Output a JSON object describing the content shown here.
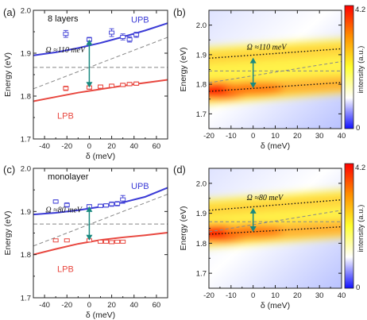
{
  "chart_data": [
    {
      "panel": "(a)",
      "type": "scatter",
      "annotation": "8 layers",
      "xlabel": "δ (meV)",
      "ylabel": "Energy (eV)",
      "xlim": [
        -50,
        70
      ],
      "ylim": [
        1.7,
        2.0
      ],
      "xticks": [
        -40,
        -20,
        0,
        20,
        40,
        60
      ],
      "yticks": [
        1.7,
        1.8,
        1.9,
        2.0
      ],
      "rabi_label": "Ω ≈110 meV",
      "upb": {
        "label": "UPB",
        "color": "#3b3bd6",
        "x": [
          -50,
          -30,
          -10,
          10,
          30,
          50,
          70
        ],
        "y": [
          1.895,
          1.902,
          1.912,
          1.924,
          1.938,
          1.953,
          1.97
        ]
      },
      "lpb": {
        "label": "LPB",
        "color": "#e8473f",
        "x": [
          -50,
          -30,
          -10,
          10,
          30,
          50,
          70
        ],
        "y": [
          1.788,
          1.798,
          1.808,
          1.816,
          1.824,
          1.831,
          1.838
        ]
      },
      "exciton_line": {
        "color": "#888888",
        "y": 1.867
      },
      "cavity_line": {
        "color": "#888888",
        "x": [
          -50,
          70
        ],
        "y": [
          1.817,
          1.937
        ]
      },
      "upb_points": {
        "x": [
          -21,
          0,
          20,
          30,
          36,
          42
        ],
        "y": [
          1.945,
          1.932,
          1.948,
          1.938,
          1.932,
          1.943
        ],
        "yerr": [
          0.008,
          0.005,
          0.009,
          0.007,
          0.006,
          0.006
        ],
        "color": "#4a4ad8"
      },
      "lpb_points": {
        "x": [
          -21,
          0,
          10,
          20,
          30,
          36,
          42
        ],
        "y": [
          1.818,
          1.82,
          1.822,
          1.824,
          1.826,
          1.828,
          1.829
        ],
        "yerr": [
          0.005,
          0.004,
          0.004,
          0.004,
          0.004,
          0.004,
          0.004
        ],
        "color": "#e8473f"
      },
      "arrow": {
        "x": 0,
        "y": [
          1.82,
          1.932
        ],
        "color": "#1a8a80"
      }
    },
    {
      "panel": "(b)",
      "type": "heatmap",
      "xlabel": "δ (meV)",
      "ylabel": "Energy (eV)",
      "xlim": [
        -20,
        40
      ],
      "ylim": [
        1.65,
        2.05
      ],
      "xticks": [
        -20,
        -10,
        0,
        10,
        20,
        30,
        40
      ],
      "yticks": [
        1.7,
        1.8,
        1.9,
        2.0
      ],
      "colorbar": {
        "label": "intensity (a.u.)",
        "min": 0,
        "max": 4.2,
        "colors": [
          "#1010ff",
          "#ffffff",
          "#ffff30",
          "#ff9000",
          "#ff0000"
        ]
      },
      "rabi_label": "Ω ≈110 meV",
      "upb_dotted": {
        "x": [
          -20,
          40
        ],
        "y": [
          1.888,
          1.92
        ]
      },
      "lpb_dotted": {
        "x": [
          -20,
          40
        ],
        "y": [
          1.776,
          1.806
        ]
      },
      "exciton_line": {
        "y": 1.845
      },
      "cavity_line": {
        "x": [
          -20,
          40
        ],
        "y": [
          1.805,
          1.877
        ]
      },
      "arrow": {
        "x": 0,
        "y": [
          1.787,
          1.89
        ],
        "color": "#1a8a80"
      }
    },
    {
      "panel": "(c)",
      "type": "scatter",
      "annotation": "monolayer",
      "xlabel": "δ (meV)",
      "ylabel": "Energy (eV)",
      "xlim": [
        -50,
        70
      ],
      "ylim": [
        1.7,
        2.0
      ],
      "xticks": [
        -40,
        -20,
        0,
        20,
        40,
        60
      ],
      "yticks": [
        1.7,
        1.8,
        1.9,
        2.0
      ],
      "rabi_label": "Ω ≈80 meV",
      "upb": {
        "label": "UPB",
        "color": "#3b3bd6",
        "x": [
          -50,
          -30,
          -10,
          10,
          30,
          50,
          70
        ],
        "y": [
          1.893,
          1.897,
          1.903,
          1.911,
          1.921,
          1.934,
          1.955
        ]
      },
      "lpb": {
        "label": "LPB",
        "color": "#e8473f",
        "x": [
          -50,
          -30,
          -10,
          10,
          30,
          50,
          70
        ],
        "y": [
          1.8,
          1.813,
          1.825,
          1.834,
          1.84,
          1.845,
          1.851
        ]
      },
      "exciton_line": {
        "color": "#888888",
        "y": 1.871
      },
      "cavity_line": {
        "color": "#888888",
        "x": [
          -50,
          70
        ],
        "y": [
          1.82,
          1.94
        ]
      },
      "upb_points": {
        "x": [
          -30,
          -20,
          0,
          10,
          15,
          20,
          25,
          30
        ],
        "y": [
          1.923,
          1.915,
          1.912,
          1.913,
          1.914,
          1.917,
          1.918,
          1.928
        ],
        "yerr": [
          0.004,
          0.005,
          0.004,
          0.004,
          0.004,
          0.005,
          0.005,
          0.009
        ],
        "color": "#4a4ad8"
      },
      "lpb_points": {
        "x": [
          -30,
          -20,
          0,
          10,
          15,
          20,
          25,
          30
        ],
        "y": [
          1.833,
          1.833,
          1.833,
          1.83,
          1.83,
          1.829,
          1.83,
          1.83
        ],
        "yerr": [
          0.003,
          0.003,
          0.003,
          0.003,
          0.003,
          0.003,
          0.003,
          0.003
        ],
        "color": "#e8473f"
      },
      "arrow": {
        "x": 0,
        "y": [
          1.833,
          1.912
        ],
        "color": "#1a8a80"
      }
    },
    {
      "panel": "(d)",
      "type": "heatmap",
      "xlabel": "δ (meV)",
      "ylabel": "Energy (eV)",
      "xlim": [
        -20,
        40
      ],
      "ylim": [
        1.65,
        2.05
      ],
      "xticks": [
        -20,
        -10,
        0,
        10,
        20,
        30,
        40
      ],
      "yticks": [
        1.7,
        1.8,
        1.9,
        2.0
      ],
      "colorbar": {
        "label": "intensity (a.u.)",
        "min": 0,
        "max": 4.2,
        "colors": [
          "#1010ff",
          "#ffffff",
          "#ffff30",
          "#ff9000",
          "#ff0000"
        ]
      },
      "rabi_label": "Ω ≈80 meV",
      "upb_dotted": {
        "x": [
          -20,
          40
        ],
        "y": [
          1.91,
          1.945
        ]
      },
      "lpb_dotted": {
        "x": [
          -20,
          40
        ],
        "y": [
          1.83,
          1.855
        ]
      },
      "exciton_line": {
        "y": 1.872
      },
      "cavity_line": {
        "x": [
          -20,
          40
        ],
        "y": [
          1.838,
          1.91
        ]
      },
      "arrow": {
        "x": 0,
        "y": [
          1.838,
          1.918
        ],
        "color": "#1a8a80"
      }
    }
  ]
}
